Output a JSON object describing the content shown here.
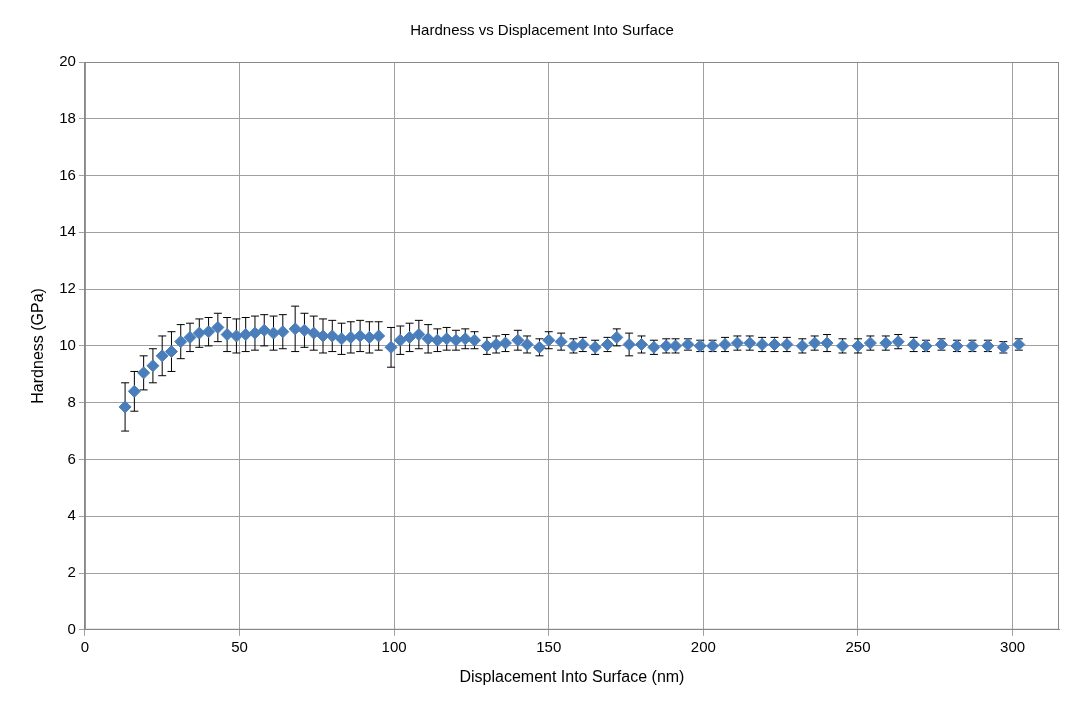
{
  "chart_data": {
    "type": "scatter",
    "title": "Hardness vs Displacement Into Surface",
    "x_label": "Displacement Into Surface (nm)",
    "y_label": "Hardness (GPa)",
    "x": [
      13,
      16,
      19,
      22,
      25,
      28,
      31,
      34,
      37,
      40,
      43,
      46,
      49,
      52,
      55,
      58,
      61,
      64,
      68,
      71,
      74,
      77,
      80,
      83,
      86,
      89,
      92,
      95,
      99,
      102,
      105,
      108,
      111,
      114,
      117,
      120,
      123,
      126,
      130,
      133,
      136,
      140,
      143,
      147,
      150,
      154,
      158,
      161,
      165,
      169,
      172,
      176,
      180,
      184,
      188,
      191,
      195,
      199,
      203,
      207,
      211,
      215,
      219,
      223,
      227,
      232,
      236,
      240,
      245,
      250,
      254,
      259,
      263,
      268,
      272,
      277,
      282,
      287,
      292,
      297,
      302
    ],
    "values": [
      7.85,
      8.4,
      9.05,
      9.3,
      9.65,
      9.8,
      10.15,
      10.3,
      10.45,
      10.5,
      10.65,
      10.4,
      10.35,
      10.4,
      10.45,
      10.55,
      10.45,
      10.5,
      10.6,
      10.55,
      10.45,
      10.35,
      10.35,
      10.25,
      10.3,
      10.35,
      10.3,
      10.35,
      9.95,
      10.2,
      10.3,
      10.4,
      10.25,
      10.2,
      10.25,
      10.2,
      10.25,
      10.2,
      10.0,
      10.05,
      10.1,
      10.2,
      10.05,
      9.95,
      10.2,
      10.15,
      10.0,
      10.05,
      9.95,
      10.05,
      10.3,
      10.05,
      10.05,
      9.95,
      10.0,
      10.0,
      10.05,
      10.0,
      10.0,
      10.05,
      10.1,
      10.1,
      10.05,
      10.05,
      10.05,
      10.0,
      10.1,
      10.1,
      10.0,
      10.0,
      10.1,
      10.1,
      10.15,
      10.05,
      10.0,
      10.05,
      10.0,
      10.0,
      10.0,
      9.95,
      10.05
    ],
    "errors": [
      0.85,
      0.7,
      0.6,
      0.6,
      0.7,
      0.7,
      0.6,
      0.5,
      0.5,
      0.5,
      0.5,
      0.6,
      0.6,
      0.6,
      0.6,
      0.55,
      0.6,
      0.6,
      0.8,
      0.6,
      0.6,
      0.6,
      0.55,
      0.55,
      0.55,
      0.55,
      0.55,
      0.5,
      0.7,
      0.5,
      0.5,
      0.5,
      0.5,
      0.4,
      0.4,
      0.35,
      0.35,
      0.3,
      0.3,
      0.3,
      0.3,
      0.35,
      0.3,
      0.3,
      0.3,
      0.3,
      0.25,
      0.25,
      0.25,
      0.25,
      0.3,
      0.4,
      0.3,
      0.25,
      0.25,
      0.25,
      0.2,
      0.2,
      0.2,
      0.25,
      0.25,
      0.25,
      0.25,
      0.25,
      0.25,
      0.25,
      0.25,
      0.3,
      0.25,
      0.25,
      0.25,
      0.25,
      0.25,
      0.25,
      0.2,
      0.2,
      0.2,
      0.2,
      0.2,
      0.2,
      0.2
    ],
    "color": "#4a7ebb",
    "marker": "diamond",
    "xlim": [
      0,
      315
    ],
    "xticks": [
      0,
      50,
      100,
      150,
      200,
      250,
      300
    ],
    "ylim": [
      0,
      20
    ],
    "yticks": [
      0,
      2,
      4,
      6,
      8,
      10,
      12,
      14,
      16,
      18,
      20
    ],
    "grid": true
  }
}
